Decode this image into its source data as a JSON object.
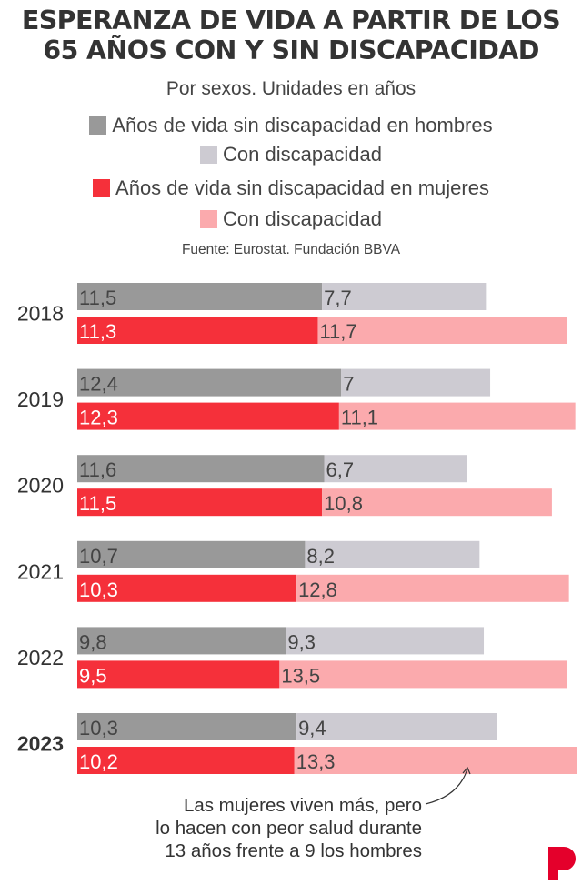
{
  "header": {
    "title_line1": "ESPERANZA DE VIDA A PARTIR DE LOS",
    "title_line2": "65 AÑOS CON Y SIN DISCAPACIDAD",
    "subtitle": "Por sexos. Unidades en años",
    "source": "Fuente: Eurostat. Fundación BBVA"
  },
  "legend": [
    {
      "label": "Años de vida sin discapacidad en hombres",
      "color": "#999999"
    },
    {
      "label": "Con discapacidad",
      "color": "#cdcbd2"
    },
    {
      "label": "Años de vida sin discapacidad en mujeres",
      "color": "#f5303a"
    },
    {
      "label": "Con discapacidad",
      "color": "#fbaaad"
    }
  ],
  "annotation": {
    "line1": "Las mujeres viven más, pero",
    "line2": "lo hacen con peor salud durante",
    "line3": "13 años frente a 9 los hombres"
  },
  "logo": {
    "icon": "p-logo-icon",
    "color": "#e4002b"
  },
  "chart_data": {
    "type": "bar",
    "orientation": "horizontal",
    "stacked": true,
    "title": "ESPERANZA DE VIDA A PARTIR DE LOS 65 AÑOS CON Y SIN DISCAPACIDAD",
    "subtitle": "Por sexos. Unidades en años",
    "xlabel": "",
    "ylabel": "",
    "categories": [
      "2018",
      "2019",
      "2020",
      "2021",
      "2022",
      "2023"
    ],
    "highlight_category": "2023",
    "decimal_separator": ",",
    "grid": false,
    "legend_position": "top",
    "series": [
      {
        "name": "Años de vida sin discapacidad en hombres",
        "group": "hombres",
        "color": "#999999",
        "label_color": "#444444",
        "values": [
          11.5,
          12.4,
          11.6,
          10.7,
          9.8,
          10.3
        ]
      },
      {
        "name": "Con discapacidad (hombres)",
        "group": "hombres",
        "color": "#cdcbd2",
        "label_color": "#444444",
        "values": [
          7.7,
          7,
          6.7,
          8.2,
          9.3,
          9.4
        ]
      },
      {
        "name": "Años de vida sin discapacidad en mujeres",
        "group": "mujeres",
        "color": "#f5303a",
        "label_color": "#ffffff",
        "values": [
          11.3,
          12.3,
          11.5,
          10.3,
          9.5,
          10.2
        ]
      },
      {
        "name": "Con discapacidad (mujeres)",
        "group": "mujeres",
        "color": "#fbaaad",
        "label_color": "#444444",
        "values": [
          11.7,
          11.1,
          10.8,
          12.8,
          13.5,
          13.3
        ]
      }
    ],
    "xlim": [
      0,
      23.5
    ]
  }
}
